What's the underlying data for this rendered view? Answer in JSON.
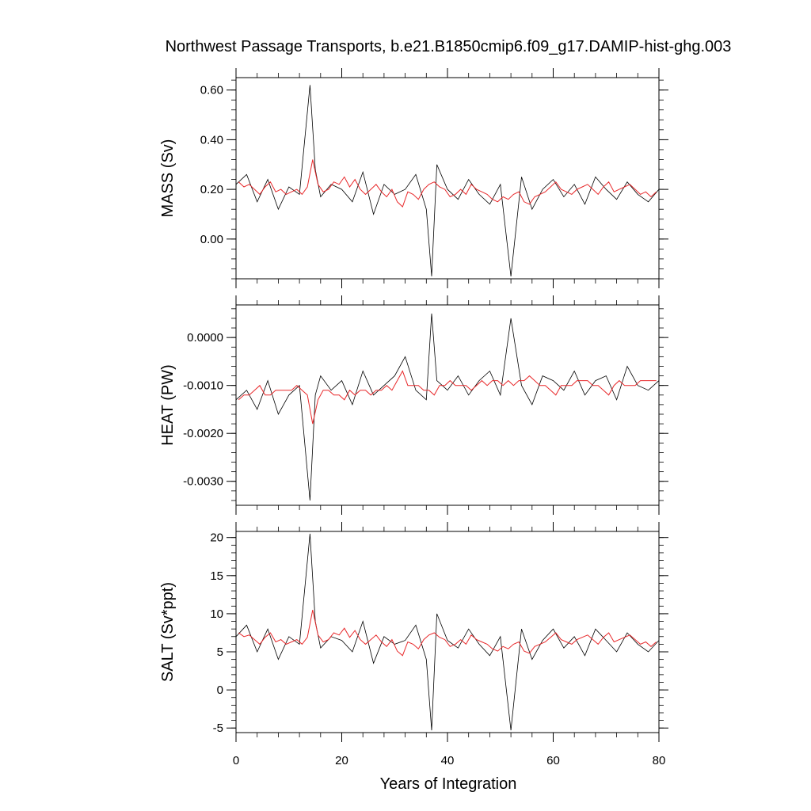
{
  "figure": {
    "title": "Northwest Passage Transports, b.e21.B1850cmip6.f09_g17.DAMIP-hist-ghg.003",
    "xlabel": "Years of Integration"
  },
  "chart_data": [
    {
      "type": "line",
      "panel": "mass",
      "ylabel": "MASS (Sv)",
      "xlim": [
        0,
        80
      ],
      "ylim": [
        -0.16,
        0.65
      ],
      "xticks": [
        0,
        20,
        40,
        60,
        80
      ],
      "yticks": [
        0.0,
        0.2,
        0.4,
        0.6
      ],
      "ytick_labels": [
        "0.00",
        "0.20",
        "0.40",
        "0.60"
      ],
      "grid": false,
      "series": [
        {
          "role": "monthly",
          "color": "#000000",
          "x": [
            0,
            2,
            4,
            6,
            8,
            10,
            12,
            14,
            15,
            16,
            18,
            20,
            22,
            24,
            26,
            28,
            30,
            32,
            34,
            36,
            37,
            38,
            40,
            42,
            44,
            46,
            48,
            50,
            52,
            54,
            56,
            58,
            60,
            62,
            64,
            66,
            68,
            70,
            72,
            74,
            76,
            78,
            80
          ],
          "values": [
            0.22,
            0.26,
            0.15,
            0.24,
            0.12,
            0.21,
            0.18,
            0.62,
            0.28,
            0.17,
            0.22,
            0.2,
            0.15,
            0.27,
            0.1,
            0.22,
            0.18,
            0.2,
            0.26,
            0.12,
            -0.15,
            0.3,
            0.2,
            0.16,
            0.24,
            0.18,
            0.14,
            0.22,
            -0.15,
            0.25,
            0.12,
            0.2,
            0.24,
            0.17,
            0.22,
            0.14,
            0.25,
            0.2,
            0.16,
            0.23,
            0.18,
            0.15,
            0.2
          ]
        },
        {
          "role": "annual-mean",
          "color": "#e8292b",
          "x": [
            0.5,
            1.5,
            2.5,
            3.5,
            4.5,
            5.5,
            6.5,
            7.5,
            8.5,
            9.5,
            10.5,
            11.5,
            12.5,
            13.5,
            14.5,
            15.5,
            16.5,
            17.5,
            18.5,
            19.5,
            20.5,
            21.5,
            22.5,
            23.5,
            24.5,
            25.5,
            26.5,
            27.5,
            28.5,
            29.5,
            30.5,
            31.5,
            32.5,
            33.5,
            34.5,
            35.5,
            36.5,
            37.5,
            38.5,
            39.5,
            40.5,
            41.5,
            42.5,
            43.5,
            44.5,
            45.5,
            46.5,
            47.5,
            48.5,
            49.5,
            50.5,
            51.5,
            52.5,
            53.5,
            54.5,
            55.5,
            56.5,
            57.5,
            58.5,
            59.5,
            60.5,
            61.5,
            62.5,
            63.5,
            64.5,
            65.5,
            66.5,
            67.5,
            68.5,
            69.5,
            70.5,
            71.5,
            72.5,
            73.5,
            74.5,
            75.5,
            76.5,
            77.5,
            78.5,
            79.5
          ],
          "values": [
            0.23,
            0.21,
            0.22,
            0.2,
            0.18,
            0.21,
            0.23,
            0.19,
            0.2,
            0.18,
            0.19,
            0.2,
            0.18,
            0.21,
            0.32,
            0.22,
            0.19,
            0.2,
            0.23,
            0.22,
            0.25,
            0.21,
            0.24,
            0.2,
            0.18,
            0.2,
            0.22,
            0.19,
            0.17,
            0.2,
            0.15,
            0.13,
            0.19,
            0.18,
            0.16,
            0.2,
            0.22,
            0.23,
            0.21,
            0.2,
            0.17,
            0.18,
            0.2,
            0.18,
            0.22,
            0.2,
            0.19,
            0.18,
            0.16,
            0.15,
            0.17,
            0.16,
            0.18,
            0.19,
            0.15,
            0.14,
            0.17,
            0.18,
            0.19,
            0.21,
            0.23,
            0.2,
            0.19,
            0.18,
            0.2,
            0.21,
            0.22,
            0.2,
            0.18,
            0.21,
            0.23,
            0.19,
            0.2,
            0.21,
            0.22,
            0.2,
            0.18,
            0.19,
            0.17,
            0.19
          ]
        }
      ]
    },
    {
      "type": "line",
      "panel": "heat",
      "ylabel": "HEAT (PW)",
      "xlim": [
        0,
        80
      ],
      "ylim": [
        -0.0035,
        0.00068
      ],
      "xticks": [
        0,
        20,
        40,
        60,
        80
      ],
      "yticks": [
        -0.003,
        -0.002,
        -0.001,
        0.0
      ],
      "ytick_labels": [
        "-0.0030",
        "-0.0020",
        "-0.0010",
        "0.0000"
      ],
      "grid": false,
      "series": [
        {
          "role": "monthly",
          "color": "#000000",
          "x": [
            0,
            2,
            4,
            6,
            8,
            10,
            12,
            14,
            15,
            16,
            18,
            20,
            22,
            24,
            26,
            28,
            30,
            32,
            34,
            36,
            37,
            38,
            40,
            42,
            44,
            46,
            48,
            50,
            52,
            54,
            56,
            58,
            60,
            62,
            64,
            66,
            68,
            70,
            72,
            74,
            76,
            78,
            80
          ],
          "values": [
            -0.0013,
            -0.0011,
            -0.0015,
            -0.0009,
            -0.0016,
            -0.0012,
            -0.001,
            -0.0034,
            -0.0012,
            -0.0008,
            -0.0011,
            -0.0009,
            -0.0014,
            -0.0007,
            -0.0012,
            -0.001,
            -0.0008,
            -0.0004,
            -0.0011,
            -0.0013,
            0.0005,
            -0.0009,
            -0.0011,
            -0.0008,
            -0.0012,
            -0.0009,
            -0.0007,
            -0.0012,
            0.0004,
            -0.001,
            -0.0014,
            -0.0008,
            -0.0009,
            -0.0011,
            -0.0007,
            -0.0012,
            -0.0009,
            -0.0008,
            -0.0013,
            -0.0006,
            -0.001,
            -0.0011,
            -0.0009
          ]
        },
        {
          "role": "annual-mean",
          "color": "#e8292b",
          "x": [
            0.5,
            1.5,
            2.5,
            3.5,
            4.5,
            5.5,
            6.5,
            7.5,
            8.5,
            9.5,
            10.5,
            11.5,
            12.5,
            13.5,
            14.5,
            15.5,
            16.5,
            17.5,
            18.5,
            19.5,
            20.5,
            21.5,
            22.5,
            23.5,
            24.5,
            25.5,
            26.5,
            27.5,
            28.5,
            29.5,
            30.5,
            31.5,
            32.5,
            33.5,
            34.5,
            35.5,
            36.5,
            37.5,
            38.5,
            39.5,
            40.5,
            41.5,
            42.5,
            43.5,
            44.5,
            45.5,
            46.5,
            47.5,
            48.5,
            49.5,
            50.5,
            51.5,
            52.5,
            53.5,
            54.5,
            55.5,
            56.5,
            57.5,
            58.5,
            59.5,
            60.5,
            61.5,
            62.5,
            63.5,
            64.5,
            65.5,
            66.5,
            67.5,
            68.5,
            69.5,
            70.5,
            71.5,
            72.5,
            73.5,
            74.5,
            75.5,
            76.5,
            77.5,
            78.5,
            79.5
          ],
          "values": [
            -0.0013,
            -0.0012,
            -0.0012,
            -0.0011,
            -0.001,
            -0.0012,
            -0.0012,
            -0.0011,
            -0.0011,
            -0.0011,
            -0.0011,
            -0.001,
            -0.0011,
            -0.0012,
            -0.0018,
            -0.0013,
            -0.0011,
            -0.0011,
            -0.0012,
            -0.0012,
            -0.0013,
            -0.0011,
            -0.0012,
            -0.0011,
            -0.0011,
            -0.0012,
            -0.0011,
            -0.0011,
            -0.001,
            -0.0011,
            -0.0009,
            -0.0007,
            -0.001,
            -0.001,
            -0.001,
            -0.0011,
            -0.0011,
            -0.0012,
            -0.001,
            -0.001,
            -0.0009,
            -0.001,
            -0.001,
            -0.001,
            -0.0011,
            -0.001,
            -0.0009,
            -0.001,
            -0.0009,
            -0.0009,
            -0.001,
            -0.0009,
            -0.001,
            -0.0009,
            -0.0009,
            -0.0008,
            -0.0009,
            -0.001,
            -0.001,
            -0.0011,
            -0.0012,
            -0.001,
            -0.001,
            -0.001,
            -0.0009,
            -0.0009,
            -0.0009,
            -0.001,
            -0.001,
            -0.0011,
            -0.0012,
            -0.001,
            -0.0009,
            -0.001,
            -0.001,
            -0.001,
            -0.0009,
            -0.0009,
            -0.0009,
            -0.0009
          ]
        }
      ]
    },
    {
      "type": "line",
      "panel": "salt",
      "ylabel": "SALT (Sv*ppt)",
      "xlim": [
        0,
        80
      ],
      "ylim": [
        -5.6,
        20.8
      ],
      "xticks": [
        0,
        20,
        40,
        60,
        80
      ],
      "yticks": [
        -5,
        0,
        5,
        10,
        15,
        20
      ],
      "ytick_labels": [
        "-5",
        "0",
        "5",
        "10",
        "15",
        "20"
      ],
      "grid": false,
      "series": [
        {
          "role": "monthly",
          "color": "#000000",
          "x": [
            0,
            2,
            4,
            6,
            8,
            10,
            12,
            14,
            15,
            16,
            18,
            20,
            22,
            24,
            26,
            28,
            30,
            32,
            34,
            36,
            37,
            38,
            40,
            42,
            44,
            46,
            48,
            50,
            52,
            54,
            56,
            58,
            60,
            62,
            64,
            66,
            68,
            70,
            72,
            74,
            76,
            78,
            80
          ],
          "values": [
            7,
            8.5,
            5,
            8,
            4,
            7,
            6,
            20.5,
            9,
            5.5,
            7,
            6.5,
            5,
            9,
            3.5,
            7,
            6,
            6.5,
            8.5,
            4,
            -5.3,
            10,
            6.5,
            5.5,
            8,
            6,
            4.5,
            7,
            -5.3,
            8,
            4,
            6.5,
            8,
            5.5,
            7,
            4.5,
            8,
            6.5,
            5,
            7.5,
            6,
            5,
            6.5
          ]
        },
        {
          "role": "annual-mean",
          "color": "#e8292b",
          "x": [
            0.5,
            1.5,
            2.5,
            3.5,
            4.5,
            5.5,
            6.5,
            7.5,
            8.5,
            9.5,
            10.5,
            11.5,
            12.5,
            13.5,
            14.5,
            15.5,
            16.5,
            17.5,
            18.5,
            19.5,
            20.5,
            21.5,
            22.5,
            23.5,
            24.5,
            25.5,
            26.5,
            27.5,
            28.5,
            29.5,
            30.5,
            31.5,
            32.5,
            33.5,
            34.5,
            35.5,
            36.5,
            37.5,
            38.5,
            39.5,
            40.5,
            41.5,
            42.5,
            43.5,
            44.5,
            45.5,
            46.5,
            47.5,
            48.5,
            49.5,
            50.5,
            51.5,
            52.5,
            53.5,
            54.5,
            55.5,
            56.5,
            57.5,
            58.5,
            59.5,
            60.5,
            61.5,
            62.5,
            63.5,
            64.5,
            65.5,
            66.5,
            67.5,
            68.5,
            69.5,
            70.5,
            71.5,
            72.5,
            73.5,
            74.5,
            75.5,
            76.5,
            77.5,
            78.5,
            79.5
          ],
          "values": [
            7.5,
            7,
            7.2,
            6.6,
            6,
            6.9,
            7.5,
            6.3,
            6.6,
            6,
            6.3,
            6.6,
            6,
            6.9,
            10.5,
            7.2,
            6.3,
            6.6,
            7.5,
            7.2,
            8.1,
            6.9,
            7.8,
            6.6,
            6,
            6.6,
            7.2,
            6.3,
            5.7,
            6.6,
            5.1,
            4.5,
            6.3,
            6,
            5.4,
            6.6,
            7.2,
            7.5,
            6.9,
            6.6,
            5.7,
            6,
            6.6,
            6,
            7.2,
            6.6,
            6.3,
            6,
            5.4,
            5.1,
            5.7,
            5.4,
            6,
            6.3,
            5.1,
            4.8,
            5.7,
            6,
            6.3,
            6.9,
            7.5,
            6.6,
            6.3,
            6,
            6.6,
            6.9,
            7.2,
            6.6,
            6,
            6.9,
            7.5,
            6.3,
            6.6,
            6.9,
            7.2,
            6.6,
            6,
            6.3,
            5.7,
            6.3
          ]
        }
      ]
    }
  ]
}
